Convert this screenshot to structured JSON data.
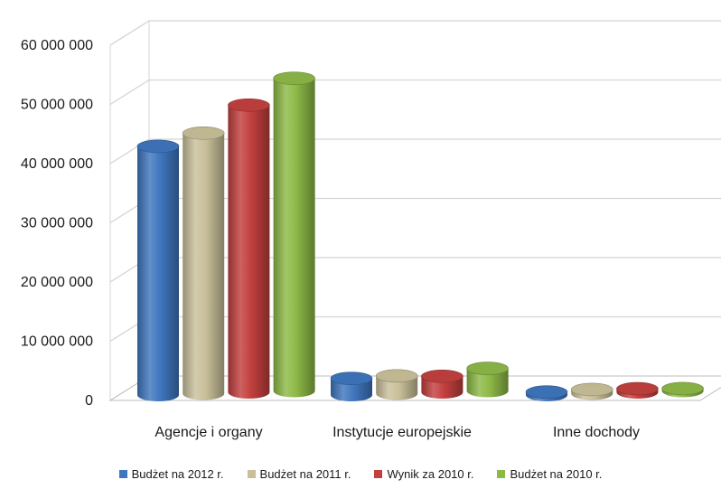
{
  "chart_data": {
    "type": "bar",
    "subtype": "3d-cylinder-clustered",
    "title": "",
    "xlabel": "",
    "ylabel": "",
    "categories": [
      "Agencje i organy",
      "Instytucje europejskie",
      "Inne dochody"
    ],
    "series": [
      {
        "name": "Budżet na 2012 r.",
        "color": "#3F76BE",
        "values": [
          42000000,
          2800000,
          500000
        ]
      },
      {
        "name": "Budżet na 2011 r.",
        "color": "#C9C09A",
        "values": [
          44000000,
          3000000,
          700000
        ]
      },
      {
        "name": "Wynik za 2010 r.",
        "color": "#C2403E",
        "values": [
          48500000,
          2700000,
          600000
        ]
      },
      {
        "name": "Budżet na 2010 r.",
        "color": "#8DB947",
        "values": [
          52800000,
          3800000,
          400000
        ]
      }
    ],
    "ylim": [
      0,
      60000000
    ],
    "yticks": [
      0,
      10000000,
      20000000,
      30000000,
      40000000,
      50000000,
      60000000
    ],
    "ytick_labels": [
      "0",
      "10 000 000",
      "20 000 000",
      "30 000 000",
      "40 000 000",
      "50 000 000",
      "60 000 000"
    ],
    "grid": true,
    "legend_position": "bottom"
  }
}
